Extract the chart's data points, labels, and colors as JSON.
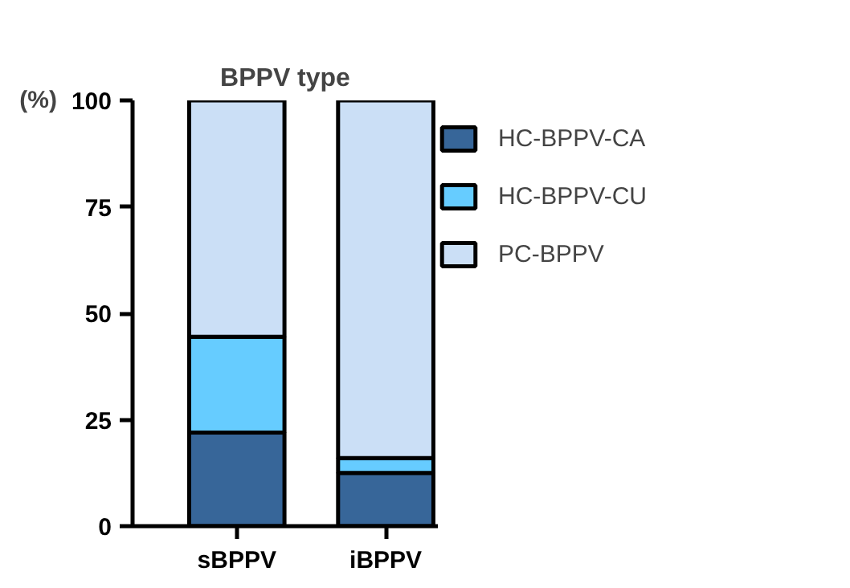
{
  "chart_data": {
    "type": "bar",
    "title": "BPPV type",
    "ylabel": "(%)",
    "categories": [
      "sBPPV",
      "iBPPV"
    ],
    "stacked": true,
    "ylim": [
      0,
      100
    ],
    "yticks": [
      0,
      25,
      50,
      75,
      100
    ],
    "legend": "right",
    "series": [
      {
        "name": "HC-BPPV-CA",
        "color": "#376699",
        "values": [
          22,
          12.5
        ]
      },
      {
        "name": "HC-BPPV-CU",
        "color": "#66ccff",
        "values": [
          22.5,
          3.5
        ]
      },
      {
        "name": "PC-BPPV",
        "color": "#cbdff6",
        "values": [
          55.5,
          84
        ]
      }
    ]
  }
}
